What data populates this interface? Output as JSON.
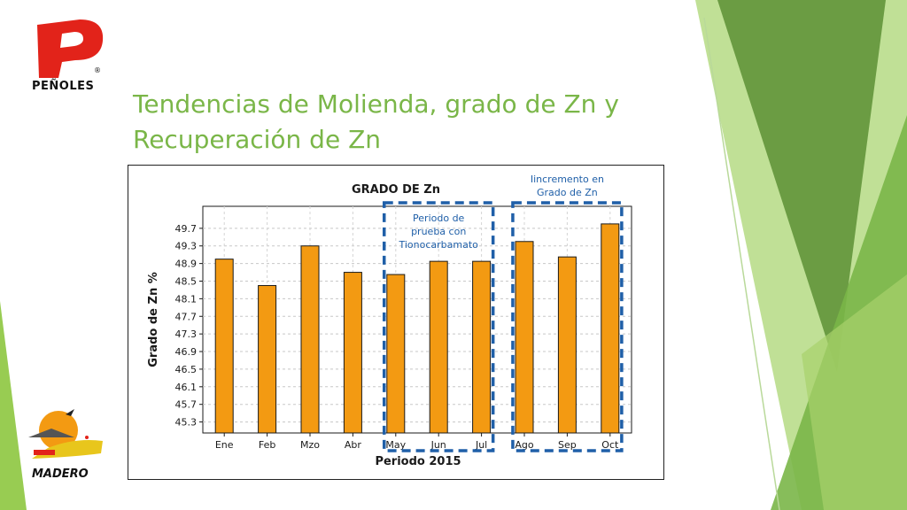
{
  "slide": {
    "title": "Tendencias de Molienda, grado de Zn y Recuperación de Zn",
    "logo_top_text": "PEÑOLES",
    "logo_bottom_text": "MADERO"
  },
  "colors": {
    "title": "#7ab648",
    "bar_fill": "#f39a12",
    "bar_stroke": "#1a1a1a",
    "annotation": "#1f5fa8",
    "logo_red": "#e2231a"
  },
  "chart_data": {
    "type": "bar",
    "title": "GRADO DE Zn",
    "xlabel": "Periodo 2015",
    "ylabel": "Grado de Zn %",
    "categories": [
      "Ene",
      "Feb",
      "Mzo",
      "Abr",
      "May",
      "Jun",
      "Jul",
      "Ago",
      "Sep",
      "Oct"
    ],
    "values": [
      49.0,
      48.4,
      49.3,
      48.7,
      48.65,
      48.95,
      48.95,
      49.4,
      49.05,
      49.8
    ],
    "yticks": [
      "45.3",
      "45.7",
      "46.1",
      "46.5",
      "46.9",
      "47.3",
      "47.7",
      "48.1",
      "48.5",
      "48.9",
      "49.3",
      "49.7"
    ],
    "ylim": [
      45.05,
      50.2
    ],
    "grid": true,
    "annotations": [
      {
        "text": "Periodo de prueba con Tionocarbamato",
        "categories": [
          "May",
          "Jun",
          "Jul"
        ],
        "style": "dashed box"
      },
      {
        "text": "Iincremento en Grado de Zn",
        "categories": [
          "Ago",
          "Sep",
          "Oct"
        ],
        "style": "dashed box"
      }
    ]
  }
}
